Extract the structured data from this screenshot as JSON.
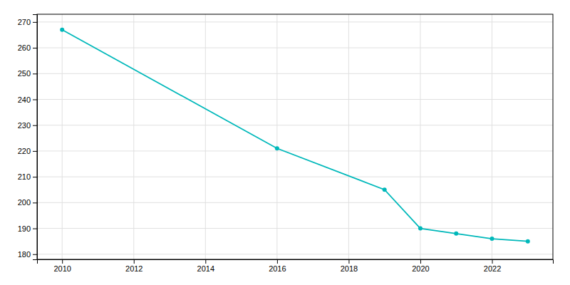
{
  "chart_data": {
    "type": "line",
    "x": [
      2010,
      2016,
      2019,
      2020,
      2021,
      2022,
      2023
    ],
    "values": [
      267,
      221,
      205,
      190,
      188,
      186,
      185
    ],
    "color": "#00b8ba",
    "marker": "circle",
    "xlim": [
      2009.3,
      2023.7
    ],
    "xticks": [
      2010,
      2012,
      2014,
      2016,
      2018,
      2020,
      2022
    ],
    "ylim": [
      178,
      273
    ],
    "yticks": [
      180,
      190,
      200,
      210,
      220,
      230,
      240,
      250,
      260,
      270
    ],
    "grid": true
  }
}
